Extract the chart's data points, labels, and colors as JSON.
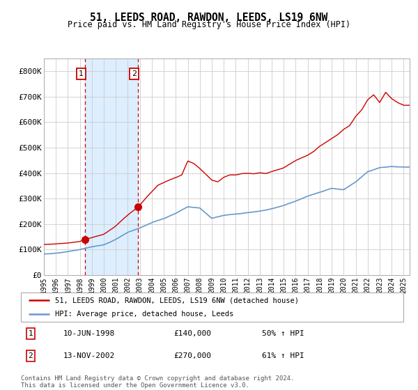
{
  "title": "51, LEEDS ROAD, RAWDON, LEEDS, LS19 6NW",
  "subtitle": "Price paid vs. HM Land Registry's House Price Index (HPI)",
  "legend_line1": "51, LEEDS ROAD, RAWDON, LEEDS, LS19 6NW (detached house)",
  "legend_line2": "HPI: Average price, detached house, Leeds",
  "sale1_date": "10-JUN-1998",
  "sale1_price": 140000,
  "sale1_hpi": "50% ↑ HPI",
  "sale2_date": "13-NOV-2002",
  "sale2_price": 270000,
  "sale2_hpi": "61% ↑ HPI",
  "footnote": "Contains HM Land Registry data © Crown copyright and database right 2024.\nThis data is licensed under the Open Government Licence v3.0.",
  "hpi_color": "#6699cc",
  "price_color": "#cc0000",
  "sale_dot_color": "#cc0000",
  "shade_color": "#ddeeff",
  "dashed_line_color": "#cc0000",
  "grid_color": "#cccccc",
  "background_color": "#ffffff",
  "ylim": [
    0,
    850000
  ],
  "sale1_x": 1998.44,
  "sale2_x": 2002.87,
  "hpi_waypoints_t": [
    1995,
    1996,
    1997,
    1998,
    1999,
    2000,
    2001,
    2002,
    2003,
    2004,
    2005,
    2006,
    2007,
    2008,
    2009,
    2010,
    2011,
    2012,
    2013,
    2014,
    2015,
    2016,
    2017,
    2018,
    2019,
    2020,
    2021,
    2022,
    2023,
    2024,
    2025
  ],
  "hpi_waypoints_v": [
    82000,
    86000,
    92000,
    100000,
    110000,
    118000,
    140000,
    168000,
    185000,
    205000,
    220000,
    240000,
    265000,
    260000,
    220000,
    230000,
    235000,
    240000,
    245000,
    255000,
    268000,
    285000,
    305000,
    320000,
    335000,
    330000,
    360000,
    400000,
    415000,
    420000,
    418000
  ],
  "red_waypoints_t": [
    1995,
    1996,
    1997,
    1998.0,
    1998.44,
    1999,
    2000,
    2001,
    2002,
    2002.87,
    2003.5,
    2004.5,
    2005.5,
    2006.5,
    2007.0,
    2007.5,
    2008.0,
    2009.0,
    2009.5,
    2010.0,
    2010.5,
    2011.0,
    2011.5,
    2012.0,
    2012.5,
    2013.0,
    2013.5,
    2014.0,
    2015.0,
    2016.0,
    2016.5,
    2017.0,
    2017.5,
    2018.0,
    2018.5,
    2019.0,
    2019.5,
    2020.0,
    2020.5,
    2021.0,
    2021.5,
    2022.0,
    2022.5,
    2023.0,
    2023.5,
    2024.0,
    2024.5,
    2025.0
  ],
  "red_waypoints_v": [
    120000,
    122000,
    126000,
    132000,
    140000,
    148000,
    162000,
    195000,
    238000,
    270000,
    305000,
    355000,
    375000,
    395000,
    450000,
    440000,
    420000,
    375000,
    368000,
    385000,
    395000,
    395000,
    400000,
    402000,
    400000,
    405000,
    402000,
    410000,
    425000,
    455000,
    465000,
    475000,
    490000,
    510000,
    525000,
    540000,
    555000,
    575000,
    590000,
    625000,
    650000,
    690000,
    710000,
    680000,
    720000,
    695000,
    680000,
    670000
  ]
}
